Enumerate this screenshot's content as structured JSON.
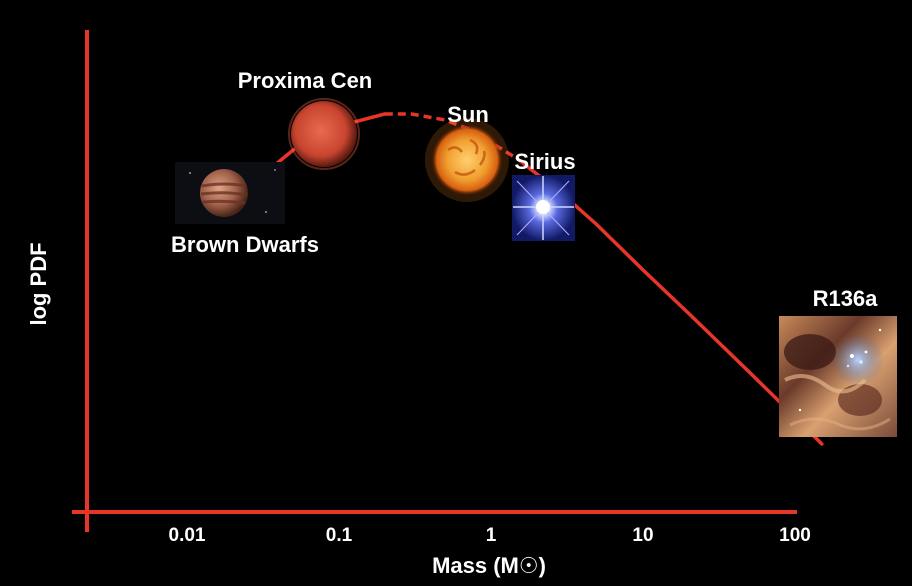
{
  "chart_data": {
    "type": "line",
    "xlabel": "Mass (M☉)",
    "ylabel": "log PDF",
    "x_scale": "log",
    "xlim": [
      0.002,
      200
    ],
    "x_ticks": [
      "0.01",
      "0.1",
      "1",
      "10",
      "100"
    ],
    "grid": false,
    "legend": "none",
    "series": [
      {
        "x": [
          0.02,
          0.05,
          0.1,
          0.2,
          0.3,
          0.5,
          0.8,
          1,
          1.5,
          2,
          3,
          5,
          10,
          20,
          50,
          100,
          150
        ],
        "y": [
          -0.45,
          -0.12,
          0.04,
          0.12,
          0.12,
          0.08,
          0.0,
          -0.07,
          -0.18,
          -0.28,
          -0.42,
          -0.62,
          -0.92,
          -1.21,
          -1.6,
          -1.9,
          -2.08
        ]
      }
    ],
    "objects": [
      {
        "name": "Brown Dwarfs",
        "mass": 0.03,
        "image": "brown-dwarf-image"
      },
      {
        "name": "Proxima Cen",
        "mass": 0.12,
        "image": "red-dwarf-image"
      },
      {
        "name": "Sun",
        "mass": 1,
        "image": "sun-image"
      },
      {
        "name": "Sirius",
        "mass": 2.1,
        "image": "blue-star-image"
      },
      {
        "name": "R136a",
        "mass": 150,
        "image": "star-cluster-image"
      }
    ]
  },
  "colors": {
    "background": "#000000",
    "curve": "#e8352a",
    "axis": "#e8352a",
    "text": "#ffffff"
  }
}
